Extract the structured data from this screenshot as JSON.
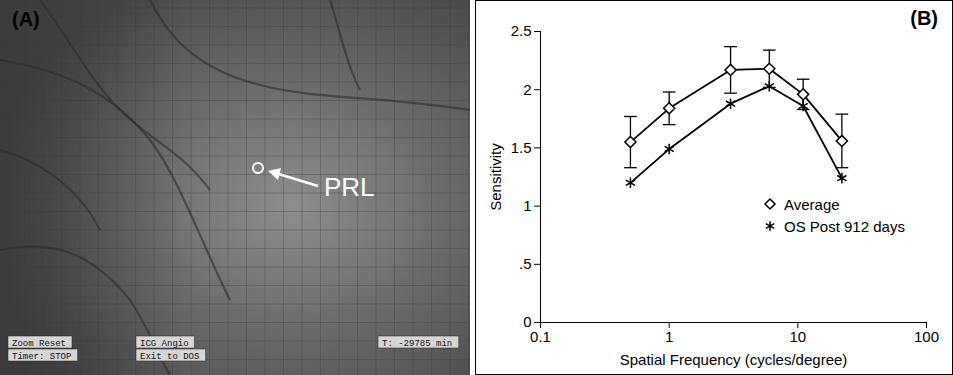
{
  "image_panel": {
    "panel": "(A)",
    "annotation": "PRL",
    "screen_texts": [
      [
        "Zoom Reset",
        "Timer: STOP"
      ],
      [
        "ICG Angio",
        "Exit to DOS"
      ],
      [
        "T: -29785 min"
      ]
    ]
  },
  "chart_data": {
    "panel": "(B)",
    "type": "line",
    "log": "x",
    "grid": false,
    "x_label": "Spatial Frequency (cycles/degree)",
    "y_label": "Sensitivity",
    "x": [
      0.5,
      1,
      3,
      6,
      11,
      22
    ],
    "xlim": [
      0.1,
      100
    ],
    "xticks": [
      0.1,
      1,
      10,
      100
    ],
    "ylim": [
      0,
      2.5
    ],
    "yticks": [
      0,
      {
        "value": 0.5,
        "label": ".5"
      },
      1,
      1.5,
      2,
      2.5
    ],
    "legend": "lower right",
    "series": [
      {
        "name": "Average",
        "color": "#000000",
        "marker": "diamond",
        "line_style": "solid",
        "values": [
          1.55,
          1.84,
          2.17,
          2.18,
          1.96,
          1.56
        ],
        "errors": [
          0.22,
          0.14,
          0.2,
          0.16,
          0.13,
          0.23
        ]
      },
      {
        "name": "OS Post 912 days",
        "color": "#000000",
        "marker": "asterisk",
        "line_style": "solid",
        "values": [
          1.2,
          1.49,
          1.88,
          2.03,
          1.86,
          1.24
        ]
      }
    ]
  }
}
